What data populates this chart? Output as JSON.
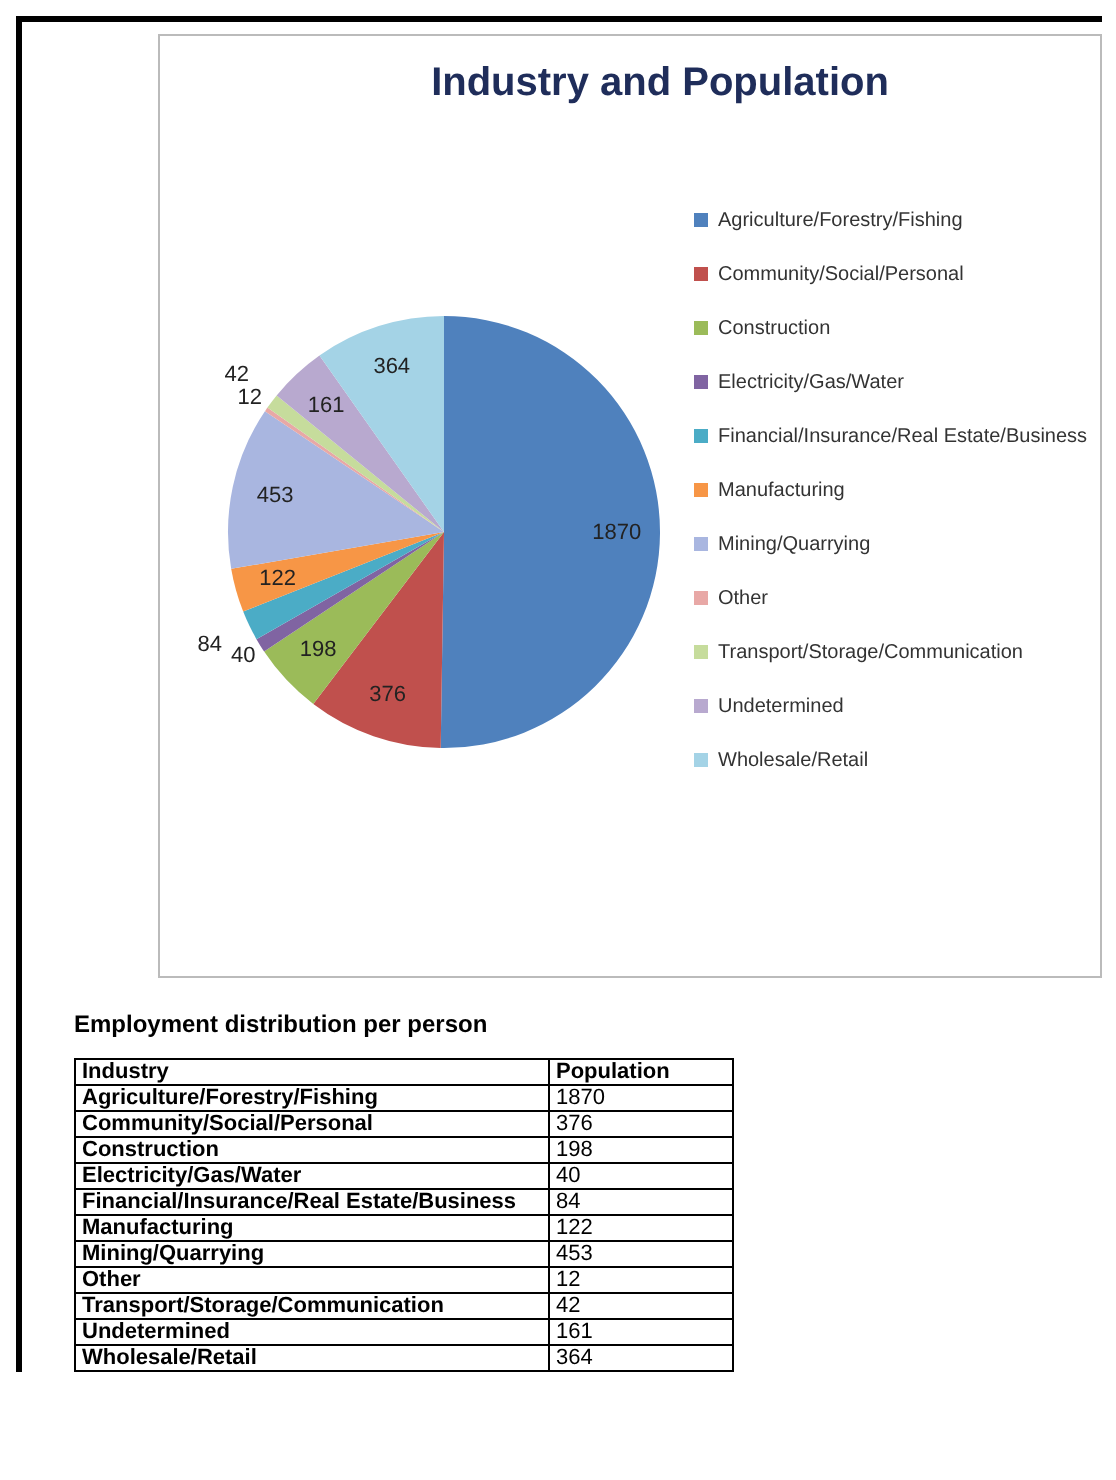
{
  "chart_data": [
    {
      "type": "pie",
      "title": "Industry and Population",
      "categories": [
        "Agriculture/Forestry/Fishing",
        "Community/Social/Personal",
        "Construction",
        "Electricity/Gas/Water",
        "Financial/Insurance/Real Estate/Business",
        "Manufacturing",
        "Mining/Quarrying",
        "Other",
        "Transport/Storage/Communication",
        "Undetermined",
        "Wholesale/Retail"
      ],
      "values": [
        1870,
        376,
        198,
        40,
        84,
        122,
        453,
        12,
        42,
        161,
        364
      ],
      "colors": [
        "#4f81bd",
        "#c0504d",
        "#9bbb59",
        "#8064a2",
        "#4bacc6",
        "#f79646",
        "#a9b6e0",
        "#e8a8a6",
        "#c6dc9c",
        "#b8a9cf",
        "#a4d3e6"
      ],
      "data_labels": true,
      "legend": "right"
    },
    {
      "type": "other",
      "title": "Employment distribution per person",
      "xlabel": "Industry",
      "ylabel": "Population",
      "categories": [
        "Agriculture/Forestry/Fishing",
        "Community/Social/Personal",
        "Construction",
        "Electricity/Gas/Water",
        "Financial/Insurance/Real Estate/Business",
        "Manufacturing",
        "Mining/Quarrying",
        "Other",
        "Transport/Storage/Communication",
        "Undetermined",
        "Wholesale/Retail"
      ],
      "values": [
        1870,
        376,
        198,
        40,
        84,
        122,
        453,
        12,
        42,
        161,
        364
      ],
      "data_labels": true
    }
  ]
}
